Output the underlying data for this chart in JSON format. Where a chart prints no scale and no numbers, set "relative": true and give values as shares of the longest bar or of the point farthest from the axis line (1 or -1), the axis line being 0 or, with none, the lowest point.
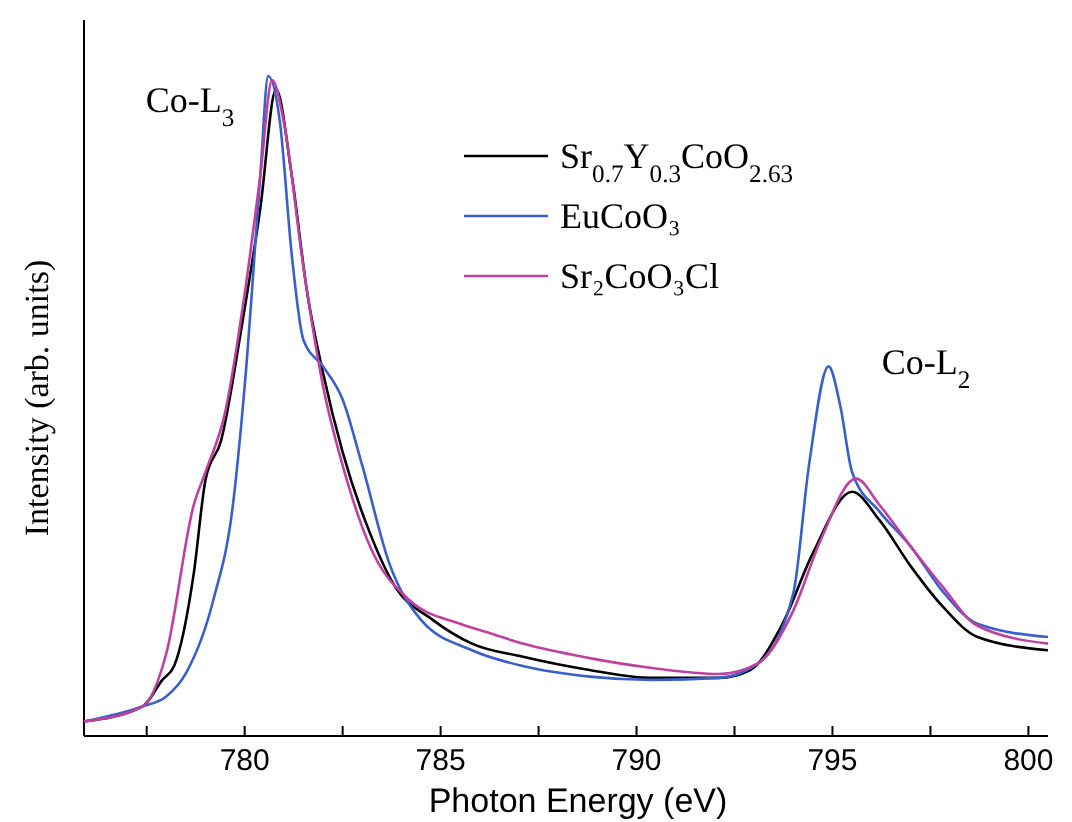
{
  "chart_data": {
    "type": "line",
    "xlabel": "Photon Energy (eV)",
    "ylabel": "Intensity (arb. units)",
    "relative": true,
    "xlim": [
      775.9,
      800.5
    ],
    "xticks": [
      {
        "value": 777.5,
        "label": null
      },
      780,
      {
        "value": 782.5,
        "label": null
      },
      785,
      {
        "value": 787.5,
        "label": null
      },
      790,
      {
        "value": 792.5,
        "label": null
      },
      795,
      {
        "value": 797.5,
        "label": null
      },
      800
    ],
    "legend": "top",
    "grid": false,
    "line_style": "solid",
    "annotations": [
      "Co-L$_{3}$",
      "Co-L$_{2}$"
    ],
    "series": [
      {
        "name": "Sr$_{0.7}$Y$_{0.3}$CoO$_{2.63}$",
        "color": "#000000",
        "x": [
          775.9,
          777.4,
          777.9,
          778.2,
          778.7,
          779.0,
          779.4,
          779.95,
          780.4,
          780.8,
          781.2,
          781.6,
          782.0,
          782.5,
          783.2,
          783.8,
          784.8,
          785.8,
          787.1,
          788.8,
          790.4,
          792.1,
          792.9,
          793.7,
          794.5,
          795.5,
          796.2,
          797.0,
          797.8,
          798.7,
          800.5
        ],
        "values": [
          0.022,
          0.045,
          0.085,
          0.106,
          0.246,
          0.388,
          0.448,
          0.63,
          0.8,
          0.98,
          0.85,
          0.67,
          0.55,
          0.43,
          0.307,
          0.23,
          0.176,
          0.14,
          0.12,
          0.1,
          0.088,
          0.088,
          0.1,
          0.167,
          0.277,
          0.37,
          0.327,
          0.257,
          0.197,
          0.15,
          0.13
        ]
      },
      {
        "name": "EuCoO₃",
        "color": "#3a5fcd",
        "x": [
          775.9,
          777.4,
          778.0,
          778.5,
          779.2,
          779.7,
          780.0,
          780.4,
          780.6,
          780.9,
          781.2,
          781.5,
          782.0,
          782.5,
          783.0,
          783.7,
          784.5,
          785.8,
          787.1,
          788.8,
          790.4,
          792.1,
          793.1,
          794.0,
          794.4,
          794.9,
          795.2,
          795.5,
          796.2,
          797.0,
          797.8,
          798.7,
          800.5
        ],
        "values": [
          0.022,
          0.045,
          0.06,
          0.095,
          0.206,
          0.35,
          0.53,
          0.85,
          1,
          0.93,
          0.73,
          0.6,
          0.56,
          0.51,
          0.41,
          0.26,
          0.176,
          0.13,
          0.106,
          0.09,
          0.085,
          0.088,
          0.11,
          0.216,
          0.41,
          0.56,
          0.5,
          0.4,
          0.34,
          0.287,
          0.22,
          0.17,
          0.15
        ]
      },
      {
        "name": "Sr₂CoO₃Cl",
        "color": "#c040a0",
        "x": [
          775.9,
          777.4,
          778.0,
          778.7,
          779.0,
          779.5,
          780.0,
          780.4,
          780.7,
          781.0,
          781.5,
          782.0,
          782.5,
          783.2,
          784.2,
          785.5,
          786.3,
          787.1,
          788.8,
          790.4,
          792.1,
          793.1,
          794.0,
          794.7,
          795.6,
          796.2,
          797.0,
          797.8,
          798.7,
          800.5
        ],
        "values": [
          0.022,
          0.045,
          0.125,
          0.35,
          0.4,
          0.49,
          0.67,
          0.85,
          0.994,
          0.93,
          0.71,
          0.53,
          0.41,
          0.287,
          0.206,
          0.17,
          0.155,
          0.14,
          0.118,
          0.103,
          0.094,
          0.11,
          0.19,
          0.297,
          0.39,
          0.35,
          0.287,
          0.227,
          0.167,
          0.14
        ]
      }
    ]
  }
}
